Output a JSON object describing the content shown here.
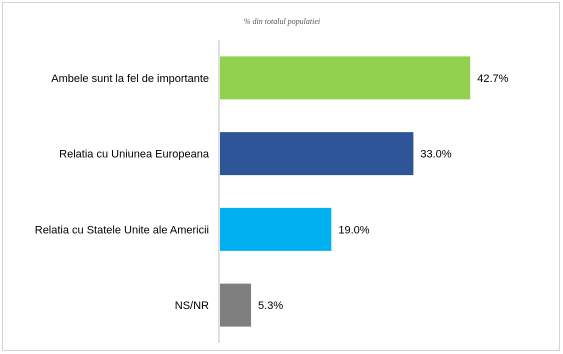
{
  "chart_data": {
    "type": "bar",
    "orientation": "horizontal",
    "subtitle": "% din totalul populatiei",
    "categories": [
      "Ambele sunt la fel de importante",
      "Relatia cu Uniunea Europeana",
      "Relatia cu Statele Unite ale Americii",
      "NS/NR"
    ],
    "values": [
      42.7,
      33.0,
      19.0,
      5.3
    ],
    "value_labels": [
      "42.7%",
      "33.0%",
      "19.0%",
      "5.3%"
    ],
    "colors": [
      "#92d050",
      "#2e5597",
      "#00b0f0",
      "#7f7f7f"
    ],
    "xlim": [
      0,
      50
    ],
    "grid": false,
    "legend": "none"
  }
}
